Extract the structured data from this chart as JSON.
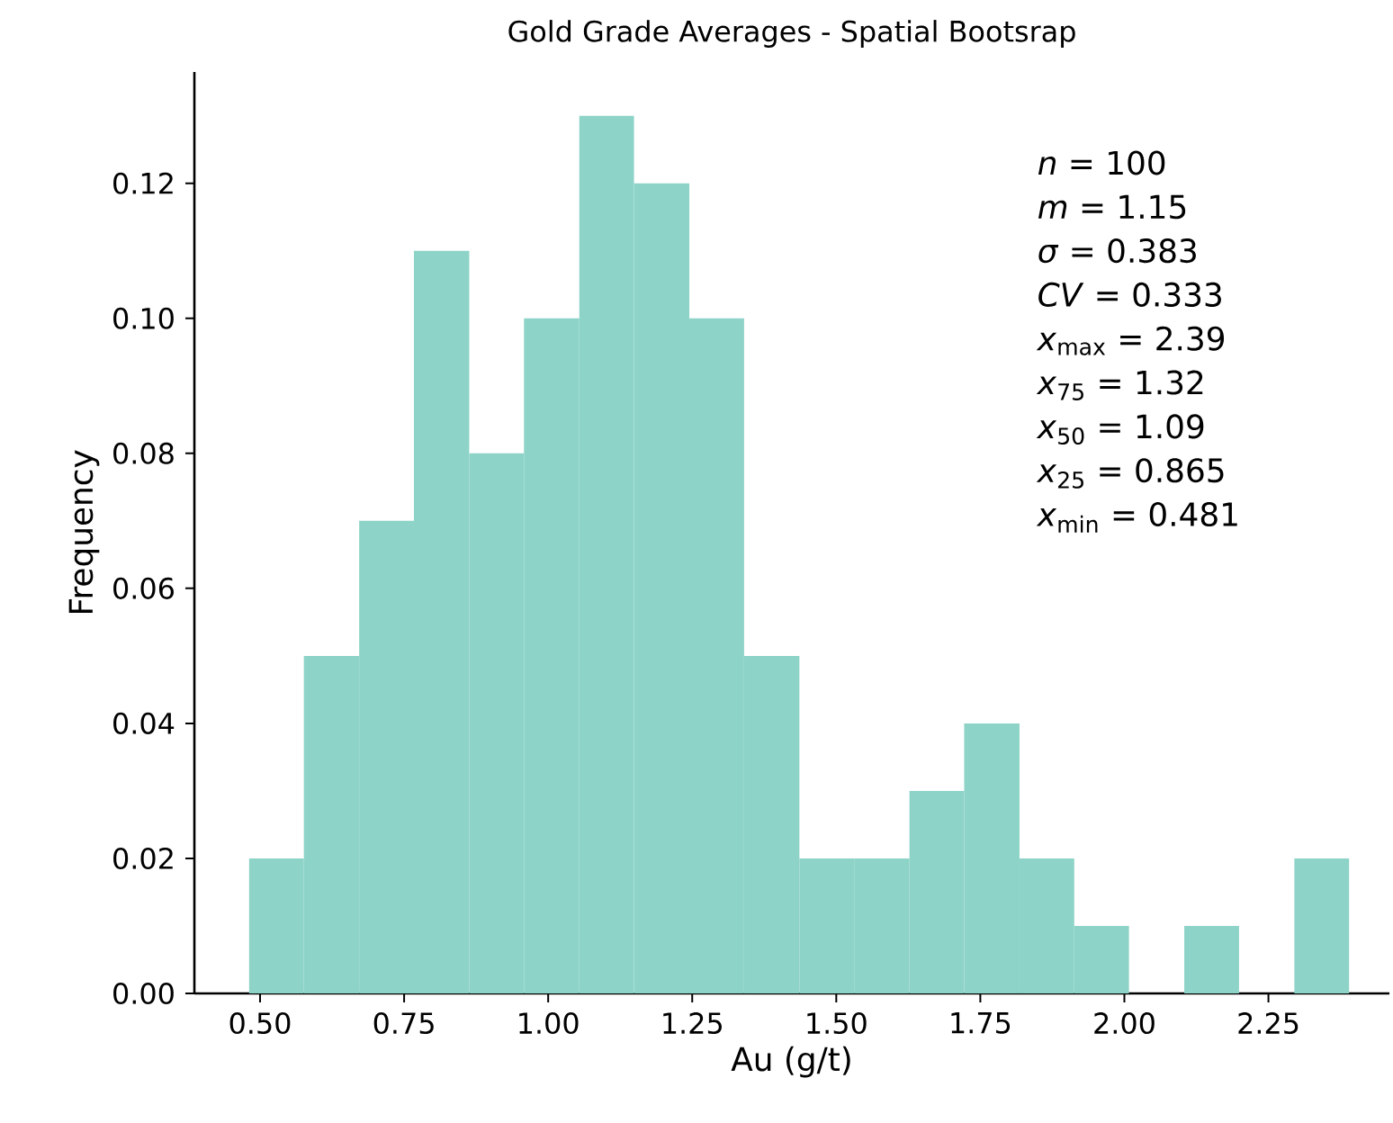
{
  "chart_data": {
    "type": "histogram",
    "title": "Gold Grade Averages - Spatial Bootsrap",
    "xlabel": "Au (g/t)",
    "ylabel": "Frequency",
    "bins": [
      0.481,
      0.576,
      0.672,
      0.767,
      0.863,
      0.958,
      1.054,
      1.149,
      1.245,
      1.34,
      1.436,
      1.531,
      1.627,
      1.722,
      1.818,
      1.913,
      2.008,
      2.104,
      2.199,
      2.295,
      2.39
    ],
    "values": [
      0.02,
      0.05,
      0.07,
      0.11,
      0.08,
      0.1,
      0.13,
      0.12,
      0.1,
      0.05,
      0.02,
      0.02,
      0.03,
      0.04,
      0.02,
      0.01,
      0,
      0.01,
      0,
      0.02
    ],
    "color": "#8dd3c7",
    "xlim": [
      0.386,
      2.46
    ],
    "ylim": [
      0,
      0.1365
    ],
    "xticks": [
      {
        "value": 0.5,
        "label": "0.50"
      },
      {
        "value": 0.75,
        "label": "0.75"
      },
      {
        "value": 1.0,
        "label": "1.00"
      },
      {
        "value": 1.25,
        "label": "1.25"
      },
      {
        "value": 1.5,
        "label": "1.50"
      },
      {
        "value": 1.75,
        "label": "1.75"
      },
      {
        "value": 2.0,
        "label": "2.00"
      },
      {
        "value": 2.25,
        "label": "2.25"
      }
    ],
    "yticks": [
      {
        "value": 0,
        "label": "0.00"
      },
      {
        "value": 0.02,
        "label": "0.02"
      },
      {
        "value": 0.04,
        "label": "0.04"
      },
      {
        "value": 0.06,
        "label": "0.06"
      },
      {
        "value": 0.08,
        "label": "0.08"
      },
      {
        "value": 0.1,
        "label": "0.10"
      },
      {
        "value": 0.12,
        "label": "0.12"
      }
    ],
    "annotations": [
      "*n* = 100",
      "*m* = 1.15",
      "*σ* = 0.383",
      "*CV* = 0.333",
      "*x*$_{max}$ = 2.39",
      "*x*$_{75}$ = 1.32",
      "*x*$_{50}$ = 1.09",
      "*x*$_{25}$ = 0.865",
      "*x*$_{min}$ = 0.481"
    ]
  }
}
